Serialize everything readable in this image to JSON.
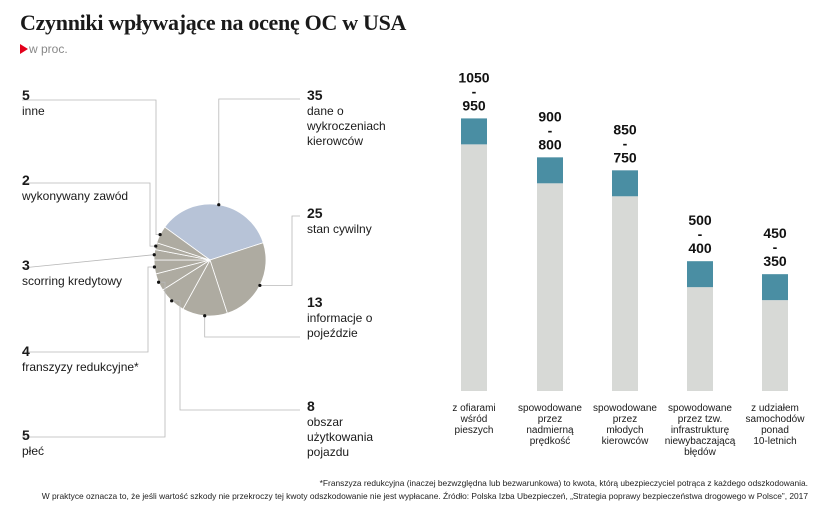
{
  "header": {
    "title": "Czynniki wpływające na ocenę OC w USA",
    "subtitle": "w proc."
  },
  "chart_data": [
    {
      "type": "pie",
      "unit": "w proc.",
      "slices": [
        {
          "value": "35",
          "label": "dane o wykroczeniach kierowców"
        },
        {
          "value": "25",
          "label": "stan cywilny"
        },
        {
          "value": "13",
          "label": "informacje o pojeździe"
        },
        {
          "value": "8",
          "label": "obszar użytkowania pojazdu"
        },
        {
          "value": "5",
          "label": "płeć"
        },
        {
          "value": "4",
          "label": "franszyzy redukcyjne*"
        },
        {
          "value": "3",
          "label": "scorring kredytowy"
        },
        {
          "value": "2",
          "label": "wykonywany zawód"
        },
        {
          "value": "5",
          "label": "inne"
        }
      ],
      "colors": {
        "highlight": "#b7c3d7",
        "other": "#aeaba1",
        "separator": "#ffffff"
      }
    },
    {
      "type": "bar",
      "value_range_note": "ranges shown as high - low",
      "ylim": [
        0,
        1150
      ],
      "bars": [
        {
          "category": "z ofiarami wśród pieszych",
          "high": 1050,
          "low": 950,
          "label_high": "1050",
          "label_sep": "-",
          "label_low": "950"
        },
        {
          "category": "spowodowane przez nadmierną prędkość",
          "high": 900,
          "low": 800,
          "label_high": "900",
          "label_sep": "-",
          "label_low": "800"
        },
        {
          "category": "spowodowane przez młodych kierowców",
          "high": 850,
          "low": 750,
          "label_high": "850",
          "label_sep": "-",
          "label_low": "750"
        },
        {
          "category": "spowodowane przez tzw. infrastrukturę niewybaczającą błędów",
          "high": 500,
          "low": 400,
          "label_high": "500",
          "label_sep": "-",
          "label_low": "400"
        },
        {
          "category": "z udziałem samochodów ponad 10-letnich",
          "high": 450,
          "low": 350,
          "label_high": "450",
          "label_sep": "-",
          "label_low": "350"
        }
      ],
      "colors": {
        "range": "#4a8ea3",
        "base": "#d7d9d6"
      }
    }
  ],
  "footnote": {
    "line1": "*Franszyza redukcyjna (inaczej bezwzględna lub bezwarunkowa) to kwota, którą ubezpieczyciel potrąca z każdego odszkodowania.",
    "line2": "W praktyce oznacza to, że jeśli wartość szkody nie przekroczy tej kwoty odszkodowanie nie jest wypłacane. Źródło: Polska Izba Ubezpieczeń, „Strategia poprawy bezpieczeństwa drogowego w Polsce”, 2017"
  }
}
